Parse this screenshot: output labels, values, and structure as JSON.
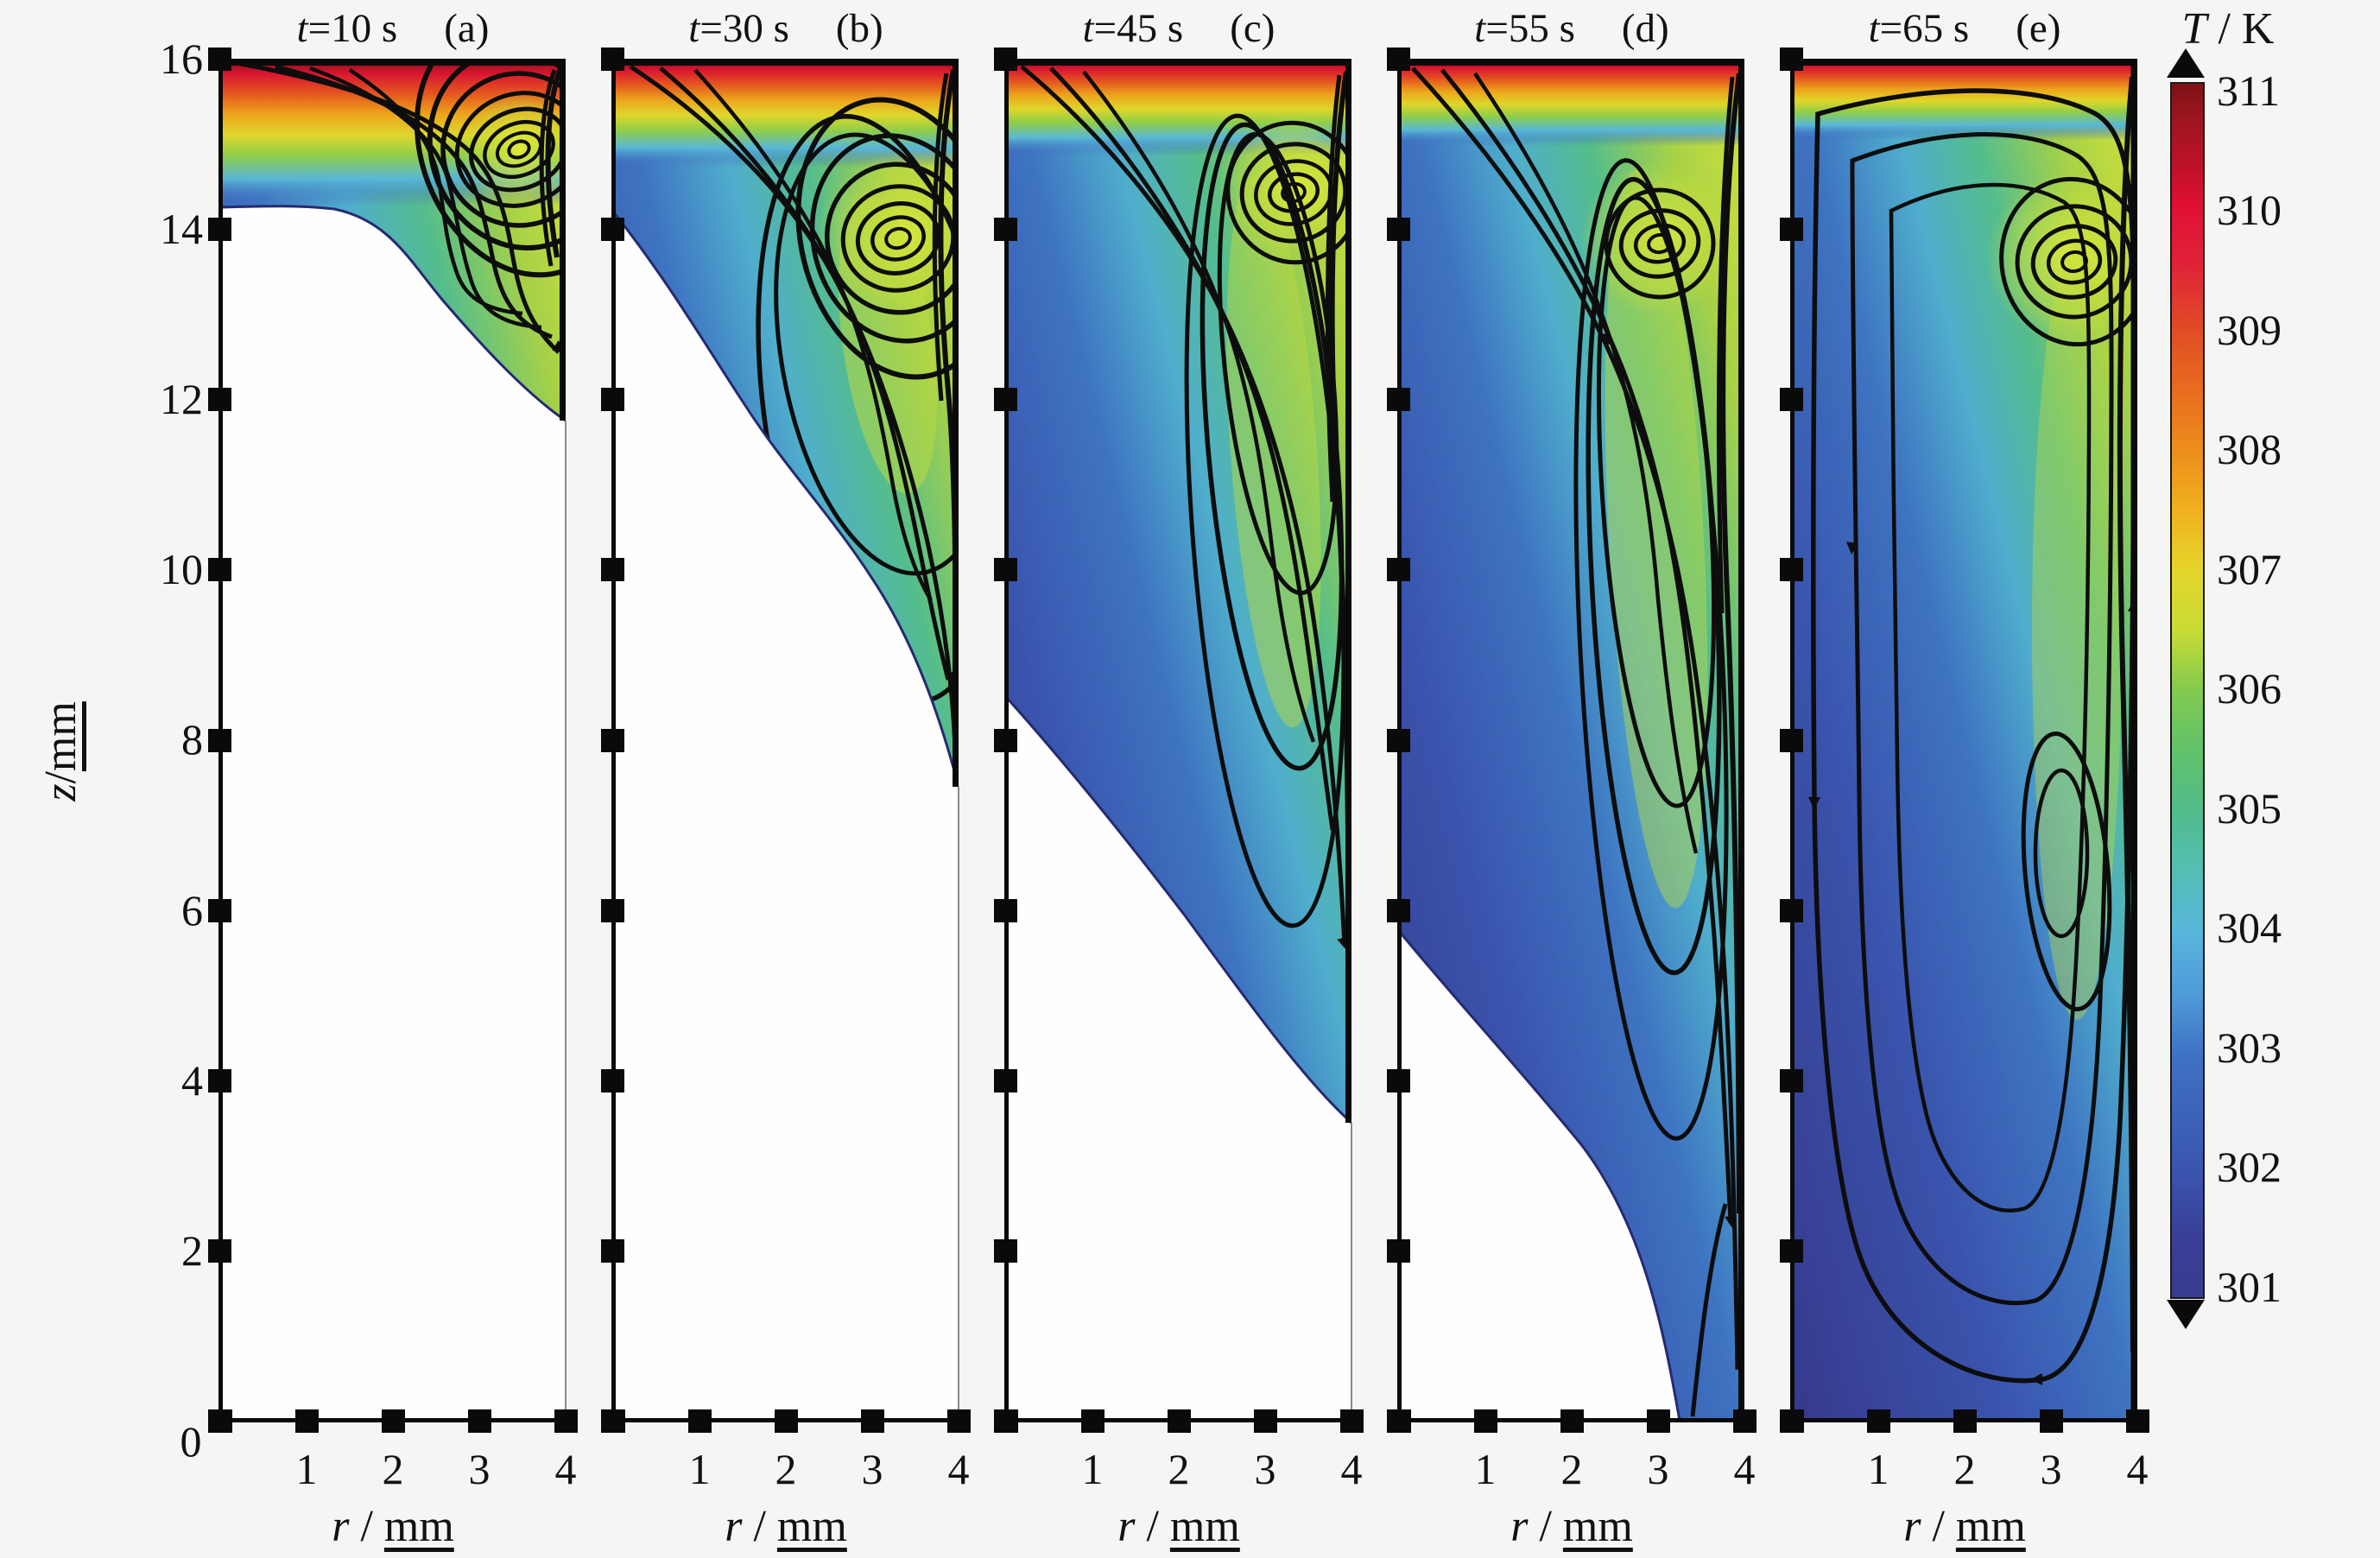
{
  "figure": {
    "background": "#f5f5f3",
    "description": "Simulated temperature field and flow streamlines in an axisymmetric melt pool at five times"
  },
  "panels": [
    {
      "var": "t",
      "value_text": "=10 s",
      "tag": "(a)",
      "time_s": 10
    },
    {
      "var": "t",
      "value_text": "=30 s",
      "tag": "(b)",
      "time_s": 30
    },
    {
      "var": "t",
      "value_text": "=45 s",
      "tag": "(c)",
      "time_s": 45
    },
    {
      "var": "t",
      "value_text": "=55 s",
      "tag": "(d)",
      "time_s": 55
    },
    {
      "var": "t",
      "value_text": "=65 s",
      "tag": "(e)",
      "time_s": 65
    }
  ],
  "axes": {
    "y_label": {
      "var": "z",
      "sep": " / ",
      "units": "mm"
    },
    "x_label": {
      "var": "r",
      "sep": " / ",
      "units": "mm"
    },
    "z_ticklabels": [
      "16",
      "14",
      "12",
      "10",
      "8",
      "6",
      "4",
      "2",
      "0"
    ],
    "r_ticklabels": [
      "1",
      "2",
      "3",
      "4"
    ],
    "origin_label": "0"
  },
  "colorbar": {
    "label": {
      "var": "T",
      "sep": " / ",
      "units": "K"
    },
    "ticklabels": [
      "311",
      "310",
      "309",
      "308",
      "307",
      "306",
      "305",
      "304",
      "303",
      "302",
      "301"
    ],
    "range_K": [
      301,
      311
    ],
    "gradient_top_to_bottom": [
      "#7E1216",
      "#C01227",
      "#E01034",
      "#E04A26",
      "#EC8C1C",
      "#E5D52B",
      "#83CA4F",
      "#52BC8C",
      "#58B5DC",
      "#3F72C4",
      "#3A53AC",
      "#383C8E"
    ]
  },
  "chart_data": {
    "type": "heatmap",
    "subtype": "temperature contour + streamline time series, 5 panels",
    "x": {
      "label": "r / mm",
      "range": [
        0,
        4
      ],
      "ticks": [
        0,
        1,
        2,
        3,
        4
      ]
    },
    "y": {
      "label": "z / mm",
      "range": [
        0,
        16
      ],
      "ticks": [
        0,
        2,
        4,
        6,
        8,
        10,
        12,
        14,
        16
      ]
    },
    "color": {
      "label": "T / K",
      "range": [
        301,
        311
      ],
      "ticks": [
        301,
        302,
        303,
        304,
        305,
        306,
        307,
        308,
        309,
        310,
        311
      ]
    },
    "panels": [
      {
        "time_s": 10,
        "tag": "(a)",
        "fully_molten": false,
        "melt_front": {
          "r_mm": [
            0,
            1,
            1.7,
            2.5,
            3,
            3.5,
            4
          ],
          "z_mm": [
            14.25,
            14.2,
            14.1,
            13.1,
            12.55,
            12.05,
            11.75
          ]
        },
        "vortex_center": {
          "r_mm": 3.5,
          "z_mm": 15.0
        },
        "surface_temp_K": 311,
        "temp_near_front_K": 301
      },
      {
        "time_s": 30,
        "tag": "(b)",
        "fully_molten": false,
        "melt_front": {
          "r_mm": [
            0,
            1,
            2,
            3,
            3.6,
            4
          ],
          "z_mm": [
            14.2,
            13.0,
            11.3,
            9.4,
            8.3,
            7.45
          ]
        },
        "vortex_center": {
          "r_mm": 3.3,
          "z_mm": 13.9
        },
        "surface_temp_K": 311,
        "temp_near_front_K": 301
      },
      {
        "time_s": 45,
        "tag": "(c)",
        "fully_molten": false,
        "melt_front": {
          "r_mm": [
            0,
            1,
            2,
            3,
            4
          ],
          "z_mm": [
            8.5,
            7.4,
            6.0,
            4.6,
            3.5
          ]
        },
        "vortex_center": {
          "r_mm": 3.35,
          "z_mm": 14.5
        },
        "surface_temp_K": 311,
        "temp_near_front_K": 301
      },
      {
        "time_s": 55,
        "tag": "(d)",
        "fully_molten": false,
        "melt_front": {
          "r_mm": [
            0,
            1,
            2,
            2.7,
            3.25
          ],
          "z_mm": [
            5.75,
            4.9,
            3.3,
            1.8,
            0
          ]
        },
        "vortex_center": {
          "r_mm": 3.0,
          "z_mm": 13.9
        },
        "surface_temp_K": 311,
        "temp_near_front_K": 301
      },
      {
        "time_s": 65,
        "tag": "(e)",
        "fully_molten": true,
        "melt_front": {
          "r_mm": [],
          "z_mm": []
        },
        "vortex_center": {
          "r_mm": 3.25,
          "z_mm": 13.7
        },
        "surface_temp_K": 311,
        "temp_near_front_K": 301
      }
    ],
    "legend_position": "right colorbar",
    "grid": false
  }
}
